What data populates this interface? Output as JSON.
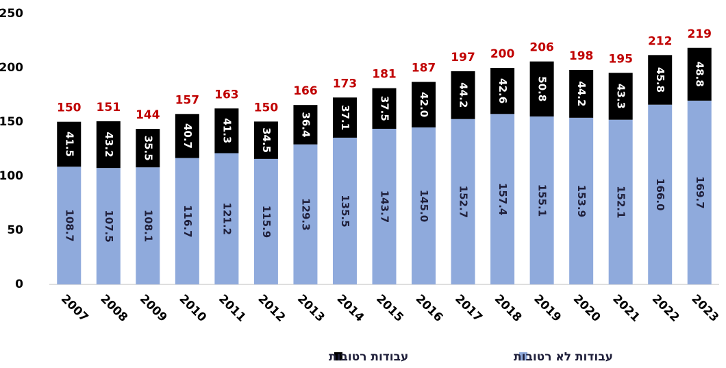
{
  "chart_data": {
    "type": "stacked_bar",
    "categories": [
      "2007",
      "2008",
      "2009",
      "2010",
      "2011",
      "2012",
      "2013",
      "2014",
      "2015",
      "2016",
      "2017",
      "2018",
      "2019",
      "2020",
      "2021",
      "2022",
      "2023"
    ],
    "series": [
      {
        "name": "עבודות לא רטובות",
        "color": "#8faadc",
        "values": [
          108.7,
          107.5,
          108.1,
          116.7,
          121.2,
          115.9,
          129.3,
          135.5,
          143.7,
          145.0,
          152.7,
          157.4,
          155.1,
          153.9,
          152.1,
          166.0,
          169.7
        ],
        "value_labels": [
          "108.7",
          "107.5",
          "108.1",
          "116.7",
          "121.2",
          "115.9",
          "129.3",
          "135.5",
          "143.7",
          "145.0",
          "152.7",
          "157.4",
          "155.1",
          "153.9",
          "152.1",
          "166.0",
          "169.7"
        ]
      },
      {
        "name": "עבודות רטובות",
        "color": "#000000",
        "values": [
          41.5,
          43.2,
          35.5,
          40.7,
          41.3,
          34.5,
          36.4,
          37.1,
          37.5,
          42.0,
          44.2,
          42.6,
          50.8,
          44.2,
          43.3,
          45.8,
          48.8
        ],
        "value_labels": [
          "41.5",
          "43.2",
          "35.5",
          "40.7",
          "41.3",
          "34.5",
          "36.4",
          "37.1",
          "37.5",
          "42.0",
          "44.2",
          "42.6",
          "50.8",
          "44.2",
          "43.3",
          "45.8",
          "48.8"
        ]
      }
    ],
    "totals": [
      150,
      151,
      144,
      157,
      163,
      150,
      166,
      173,
      181,
      187,
      197,
      200,
      206,
      198,
      195,
      212,
      219
    ],
    "totals_color": "#c00000",
    "ylim": [
      0,
      250
    ],
    "yticks": [
      0,
      50,
      100,
      150,
      200,
      250
    ],
    "grid": false
  }
}
